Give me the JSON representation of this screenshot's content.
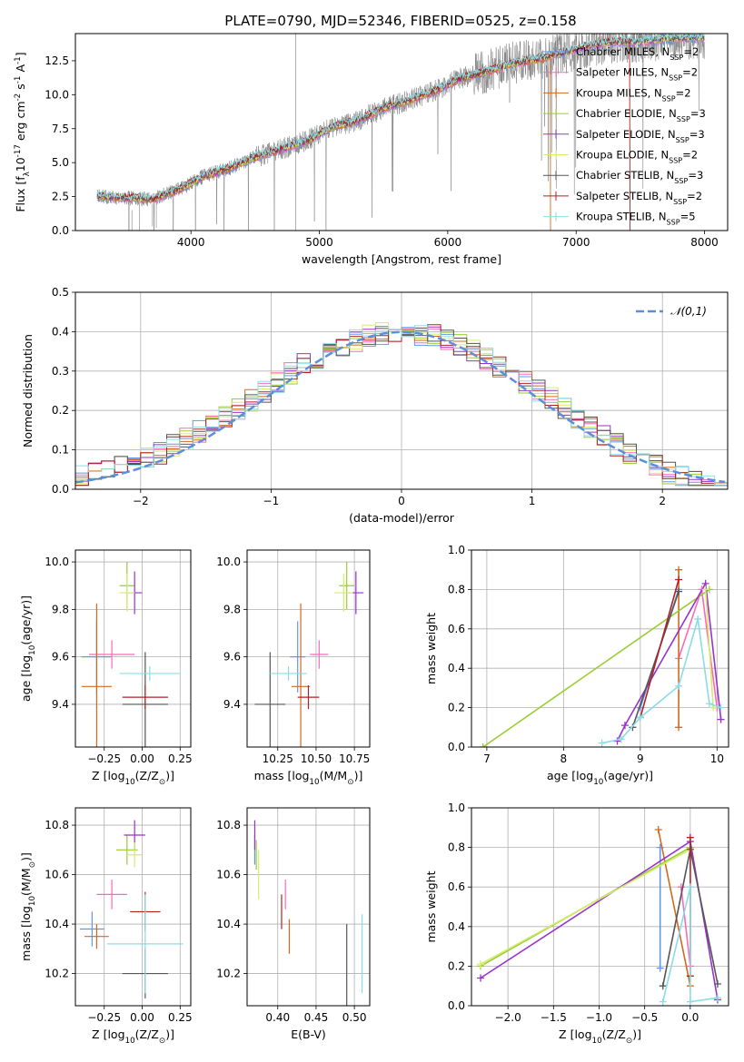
{
  "figure": {
    "title": "PLATE=0790, MJD=52346, FIBERID=0525, z=0.158"
  },
  "colors": {
    "Chabrier MILES": "#6495ed",
    "Salpeter MILES": "#ff69b4",
    "Kroupa MILES": "#d2691e",
    "Chabrier ELODIE": "#9acd32",
    "Salpeter ELODIE": "#9932cc",
    "Kroupa ELODIE": "#d4ec6e",
    "Chabrier STELIB": "#555555",
    "Salpeter STELIB": "#b22222",
    "Kroupa STELIB": "#88dde6",
    "data": "#808080",
    "normal": "#5a8fdc"
  },
  "chart_data": [
    {
      "type": "line",
      "id": "spectrum",
      "xlabel": "wavelength [Angstrom, rest frame]",
      "ylabel": "Flux [f$_\\lambda$10$^{-17}$ erg cm$^{-2}$ s$^{-1}$ A$^{-1}$]",
      "xlim": [
        3100,
        8180
      ],
      "ylim": [
        0,
        14.5
      ],
      "xticks": [
        4000,
        5000,
        6000,
        7000,
        8000
      ],
      "yticks": [
        0.0,
        2.5,
        5.0,
        7.5,
        10.0,
        12.5
      ],
      "grid": false,
      "legend_position": "upper-right",
      "legend": [
        {
          "name": "Chabrier MILES",
          "nssp": "2"
        },
        {
          "name": "Salpeter MILES",
          "nssp": "2"
        },
        {
          "name": "Kroupa MILES",
          "nssp": "2"
        },
        {
          "name": "Chabrier ELODIE",
          "nssp": "3"
        },
        {
          "name": "Salpeter ELODIE",
          "nssp": "3"
        },
        {
          "name": "Kroupa ELODIE",
          "nssp": "2"
        },
        {
          "name": "Chabrier STELIB",
          "nssp": "3"
        },
        {
          "name": "Salpeter STELIB",
          "nssp": "2"
        },
        {
          "name": "Kroupa STELIB",
          "nssp": "5"
        }
      ],
      "x_start": 3270,
      "x_end": 8000,
      "data_trend": [
        [
          3270,
          2.5
        ],
        [
          3500,
          2.4
        ],
        [
          3700,
          2.3
        ],
        [
          3900,
          3.0
        ],
        [
          4100,
          4.0
        ],
        [
          4300,
          4.6
        ],
        [
          4500,
          5.4
        ],
        [
          4700,
          6.0
        ],
        [
          4900,
          6.6
        ],
        [
          5100,
          7.6
        ],
        [
          5300,
          8.1
        ],
        [
          5500,
          9.0
        ],
        [
          5700,
          9.6
        ],
        [
          5900,
          10.3
        ],
        [
          6100,
          11.2
        ],
        [
          6300,
          11.7
        ],
        [
          6500,
          12.3
        ],
        [
          6700,
          12.6
        ],
        [
          6900,
          13.1
        ],
        [
          7100,
          13.6
        ],
        [
          7300,
          13.9
        ],
        [
          7500,
          13.9
        ],
        [
          7700,
          14.1
        ],
        [
          7900,
          14.2
        ],
        [
          8000,
          14.2
        ]
      ]
    },
    {
      "type": "histogram",
      "id": "residuals",
      "xlabel": "(data-model)/error",
      "ylabel": "Normed distribution",
      "xlim": [
        -2.5,
        2.5
      ],
      "ylim": [
        0,
        0.5
      ],
      "xticks": [
        -2,
        -1,
        0,
        1,
        2
      ],
      "yticks": [
        0.0,
        0.1,
        0.2,
        0.3,
        0.4,
        0.5
      ],
      "grid": true,
      "bin_width": 0.1,
      "legend_label": "$\\mathcal{N}(0,1)$",
      "legend_position": "upper-right"
    },
    {
      "type": "scatter",
      "id": "z-vs-age",
      "xlabel": "Z [log$_{10}$(Z/Z$_\\odot$)]",
      "ylabel": "age  [log$_{10}$(age/yr)]",
      "xlim": [
        -0.44,
        0.32
      ],
      "ylim": [
        9.22,
        10.05
      ],
      "xticks": [
        -0.25,
        0.0,
        0.25
      ],
      "yticks": [
        9.4,
        9.6,
        9.8,
        10.0
      ],
      "grid": true,
      "points": [
        {
          "series": "Chabrier MILES",
          "x": -0.3,
          "y": 9.6,
          "xerr": 0.1,
          "yerr": 0.15
        },
        {
          "series": "Salpeter MILES",
          "x": -0.2,
          "y": 9.61,
          "xerr": 0.15,
          "yerr": 0.06
        },
        {
          "series": "Kroupa MILES",
          "x": -0.3,
          "y": 9.475,
          "xerr": 0.1,
          "yerr": 0.35
        },
        {
          "series": "Chabrier ELODIE",
          "x": -0.1,
          "y": 9.9,
          "xerr": 0.05,
          "yerr": 0.1
        },
        {
          "series": "Salpeter ELODIE",
          "x": -0.05,
          "y": 9.87,
          "xerr": 0.05,
          "yerr": 0.09
        },
        {
          "series": "Kroupa ELODIE",
          "x": -0.1,
          "y": 9.87,
          "xerr": 0.05,
          "yerr": 0.08
        },
        {
          "series": "Chabrier STELIB",
          "x": 0.02,
          "y": 9.4,
          "xerr": 0.15,
          "yerr": 0.22
        },
        {
          "series": "Salpeter STELIB",
          "x": 0.02,
          "y": 9.43,
          "xerr": 0.15,
          "yerr": 0.05
        },
        {
          "series": "Kroupa STELIB",
          "x": 0.05,
          "y": 9.53,
          "xerr": 0.2,
          "yerr": 0.03
        }
      ]
    },
    {
      "type": "scatter",
      "id": "mass-vs-age",
      "xlabel": "mass [log$_{10}$(M/M$_\\odot$)]",
      "ylabel": "",
      "xlim": [
        10.05,
        10.85
      ],
      "ylim": [
        9.22,
        10.05
      ],
      "xticks": [
        10.25,
        10.5,
        10.75
      ],
      "yticks": [
        9.4,
        9.6,
        9.8,
        10.0
      ],
      "grid": true,
      "points": [
        {
          "series": "Chabrier MILES",
          "x": 10.38,
          "y": 9.6,
          "xerr": 0.05,
          "yerr": 0.15
        },
        {
          "series": "Salpeter MILES",
          "x": 10.52,
          "y": 9.61,
          "xerr": 0.06,
          "yerr": 0.06
        },
        {
          "series": "Kroupa MILES",
          "x": 10.4,
          "y": 9.475,
          "xerr": 0.06,
          "yerr": 0.35
        },
        {
          "series": "Chabrier ELODIE",
          "x": 10.7,
          "y": 9.9,
          "xerr": 0.05,
          "yerr": 0.1
        },
        {
          "series": "Salpeter ELODIE",
          "x": 10.76,
          "y": 9.87,
          "xerr": 0.05,
          "yerr": 0.09
        },
        {
          "series": "Kroupa ELODIE",
          "x": 10.68,
          "y": 9.87,
          "xerr": 0.06,
          "yerr": 0.08
        },
        {
          "series": "Chabrier STELIB",
          "x": 10.2,
          "y": 9.4,
          "xerr": 0.1,
          "yerr": 0.22
        },
        {
          "series": "Salpeter STELIB",
          "x": 10.45,
          "y": 9.43,
          "xerr": 0.07,
          "yerr": 0.05
        },
        {
          "series": "Kroupa STELIB",
          "x": 10.32,
          "y": 9.53,
          "xerr": 0.12,
          "yerr": 0.03
        }
      ]
    },
    {
      "type": "line",
      "id": "age-weights",
      "xlabel": "age  [log$_{10}$(age/yr)]",
      "ylabel": "mass weight",
      "xlim": [
        6.8,
        10.15
      ],
      "ylim": [
        0,
        1
      ],
      "xticks": [
        7,
        8,
        9,
        10
      ],
      "yticks": [
        0.0,
        0.2,
        0.4,
        0.6,
        0.8,
        1.0
      ],
      "grid": true,
      "series": [
        {
          "name": "Chabrier MILES",
          "points": [
            [
              9.0,
              0.2
            ],
            [
              9.5,
              0.8
            ]
          ]
        },
        {
          "name": "Salpeter MILES",
          "points": [
            [
              9.5,
              0.45
            ],
            [
              9.8,
              0.8
            ],
            [
              10.0,
              0.2
            ]
          ]
        },
        {
          "name": "Kroupa MILES",
          "points": [
            [
              9.5,
              0.1
            ],
            [
              9.5,
              0.9
            ]
          ]
        },
        {
          "name": "Chabrier ELODIE",
          "points": [
            [
              6.95,
              0.0
            ],
            [
              9.9,
              0.8
            ]
          ]
        },
        {
          "name": "Salpeter ELODIE",
          "points": [
            [
              8.7,
              0.03
            ],
            [
              8.8,
              0.11
            ],
            [
              9.85,
              0.83
            ],
            [
              10.05,
              0.14
            ]
          ]
        },
        {
          "name": "Kroupa ELODIE",
          "points": [
            [
              9.85,
              0.8
            ],
            [
              9.95,
              0.2
            ]
          ]
        },
        {
          "name": "Chabrier STELIB",
          "points": [
            [
              8.9,
              0.1
            ],
            [
              9.5,
              0.79
            ]
          ]
        },
        {
          "name": "Salpeter STELIB",
          "points": [
            [
              9.0,
              0.15
            ],
            [
              9.5,
              0.85
            ]
          ]
        },
        {
          "name": "Kroupa STELIB",
          "points": [
            [
              8.5,
              0.02
            ],
            [
              8.75,
              0.04
            ],
            [
              9.0,
              0.15
            ],
            [
              9.5,
              0.31
            ],
            [
              9.75,
              0.65
            ],
            [
              9.9,
              0.22
            ],
            [
              10.05,
              0.2
            ]
          ]
        }
      ]
    },
    {
      "type": "scatter",
      "id": "z-vs-mass",
      "xlabel": "Z [log$_{10}$(Z/Z$_\\odot$)]",
      "ylabel": "mass [log$_{10}$(M/M$_\\odot$)]",
      "xlim": [
        -0.44,
        0.32
      ],
      "ylim": [
        10.07,
        10.87
      ],
      "xticks": [
        -0.25,
        0.0,
        0.25
      ],
      "yticks": [
        10.2,
        10.4,
        10.6,
        10.8
      ],
      "grid": true,
      "points": [
        {
          "series": "Chabrier MILES",
          "x": -0.33,
          "y": 10.38,
          "xerr": 0.08,
          "yerr": 0.07
        },
        {
          "series": "Salpeter MILES",
          "x": -0.2,
          "y": 10.52,
          "xerr": 0.1,
          "yerr": 0.06
        },
        {
          "series": "Kroupa MILES",
          "x": -0.3,
          "y": 10.35,
          "xerr": 0.08,
          "yerr": 0.05
        },
        {
          "series": "Chabrier ELODIE",
          "x": -0.1,
          "y": 10.7,
          "xerr": 0.07,
          "yerr": 0.06
        },
        {
          "series": "Salpeter ELODIE",
          "x": -0.05,
          "y": 10.76,
          "xerr": 0.07,
          "yerr": 0.06
        },
        {
          "series": "Kroupa ELODIE",
          "x": -0.05,
          "y": 10.68,
          "xerr": 0.05,
          "yerr": 0.05
        },
        {
          "series": "Chabrier STELIB",
          "x": 0.02,
          "y": 10.2,
          "xerr": 0.15,
          "yerr": 0.1
        },
        {
          "series": "Salpeter STELIB",
          "x": 0.02,
          "y": 10.45,
          "xerr": 0.1,
          "yerr": 0.08
        },
        {
          "series": "Kroupa STELIB",
          "x": 0.02,
          "y": 10.32,
          "xerr": 0.25,
          "yerr": 0.2
        }
      ]
    },
    {
      "type": "scatter",
      "id": "ebv-vs-mass",
      "xlabel": "E(B-V)",
      "ylabel": "",
      "xlim": [
        0.36,
        0.52
      ],
      "ylim": [
        10.07,
        10.87
      ],
      "xticks": [
        0.4,
        0.45,
        0.5
      ],
      "yticks": [
        10.2,
        10.4,
        10.6,
        10.8
      ],
      "grid": true,
      "points": [
        {
          "series": "Chabrier MILES",
          "x": 0.37,
          "y": 10.7,
          "xerr": 0.0,
          "yerr": 0.06
        },
        {
          "series": "Salpeter MILES",
          "x": 0.41,
          "y": 10.52,
          "xerr": 0.0,
          "yerr": 0.06
        },
        {
          "series": "Kroupa MILES",
          "x": 0.415,
          "y": 10.35,
          "xerr": 0.0,
          "yerr": 0.07
        },
        {
          "series": "Chabrier ELODIE",
          "x": 0.372,
          "y": 10.68,
          "xerr": 0.0,
          "yerr": 0.06
        },
        {
          "series": "Salpeter ELODIE",
          "x": 0.37,
          "y": 10.76,
          "xerr": 0.0,
          "yerr": 0.06
        },
        {
          "series": "Kroupa ELODIE",
          "x": 0.375,
          "y": 10.6,
          "xerr": 0.0,
          "yerr": 0.1
        },
        {
          "series": "Chabrier STELIB",
          "x": 0.49,
          "y": 10.2,
          "xerr": 0.0,
          "yerr": 0.2
        },
        {
          "series": "Salpeter STELIB",
          "x": 0.405,
          "y": 10.45,
          "xerr": 0.0,
          "yerr": 0.07
        },
        {
          "series": "Kroupa STELIB",
          "x": 0.51,
          "y": 10.28,
          "xerr": 0.0,
          "yerr": 0.16
        }
      ]
    },
    {
      "type": "line",
      "id": "z-weights",
      "xlabel": "Z [log$_{10}$(Z/Z$_\\odot$)]",
      "ylabel": "mass weight",
      "xlim": [
        -2.4,
        0.42
      ],
      "ylim": [
        0,
        1
      ],
      "xticks": [
        -2.0,
        -1.5,
        -1.0,
        -0.5,
        0.0
      ],
      "yticks": [
        0.0,
        0.2,
        0.4,
        0.6,
        0.8,
        1.0
      ],
      "grid": true,
      "series": [
        {
          "name": "Chabrier MILES",
          "points": [
            [
              -0.33,
              0.19
            ],
            [
              -0.33,
              0.8
            ]
          ]
        },
        {
          "name": "Salpeter MILES",
          "points": [
            [
              -0.1,
              0.6
            ],
            [
              0.0,
              0.2
            ]
          ]
        },
        {
          "name": "Kroupa MILES",
          "points": [
            [
              -0.35,
              0.89
            ],
            [
              0.0,
              0.1
            ]
          ]
        },
        {
          "name": "Chabrier ELODIE",
          "points": [
            [
              -2.3,
              0.2
            ],
            [
              0.0,
              0.8
            ]
          ]
        },
        {
          "name": "Salpeter ELODIE",
          "points": [
            [
              -2.3,
              0.14
            ],
            [
              0.0,
              0.83
            ],
            [
              0.3,
              0.03
            ]
          ]
        },
        {
          "name": "Kroupa ELODIE",
          "points": [
            [
              -2.3,
              0.21
            ],
            [
              0.0,
              0.79
            ]
          ]
        },
        {
          "name": "Chabrier STELIB",
          "points": [
            [
              -0.3,
              0.1
            ],
            [
              0.0,
              0.79
            ],
            [
              0.3,
              0.11
            ]
          ]
        },
        {
          "name": "Salpeter STELIB",
          "points": [
            [
              0.0,
              0.15
            ],
            [
              0.0,
              0.85
            ]
          ]
        },
        {
          "name": "Kroupa STELIB",
          "points": [
            [
              -0.3,
              0.02
            ],
            [
              0.0,
              0.6
            ],
            [
              0.0,
              0.02
            ],
            [
              0.3,
              0.04
            ]
          ]
        }
      ]
    }
  ]
}
